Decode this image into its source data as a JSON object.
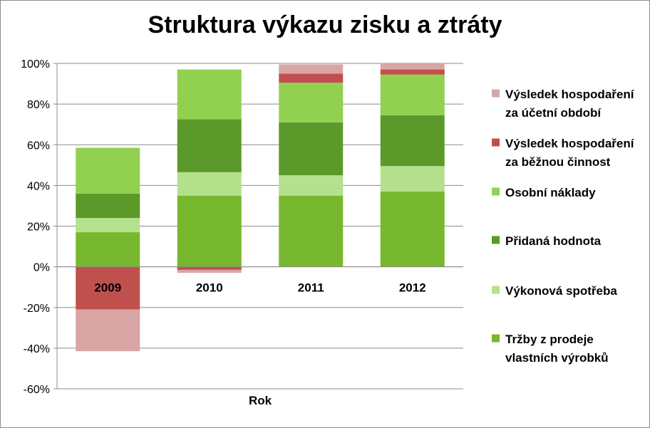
{
  "chart_data": {
    "type": "bar",
    "stacked": true,
    "title": "Struktura výkazu zisku a ztráty",
    "xlabel": "Rok",
    "ylabel": "",
    "ylim": [
      -60,
      100
    ],
    "y_ticks": [
      "100%",
      "80%",
      "60%",
      "40%",
      "20%",
      "0%",
      "-20%",
      "-40%",
      "-60%"
    ],
    "grid": true,
    "legend_position": "right",
    "categories": [
      "2009",
      "2010",
      "2011",
      "2012"
    ],
    "series": [
      {
        "name": "Tržby z prodeje vlastních výrobků",
        "color": "#77b82f",
        "values": [
          17,
          35,
          35,
          37
        ]
      },
      {
        "name": "Výkonová spotřeba",
        "color": "#b5e08c",
        "values": [
          7,
          11.5,
          10,
          12.5
        ]
      },
      {
        "name": "Přidaná hodnota",
        "color": "#5b9a2a",
        "values": [
          12,
          26,
          26,
          25
        ]
      },
      {
        "name": "Osobní náklady",
        "color": "#92d050",
        "values": [
          22.5,
          24.5,
          19.5,
          20
        ]
      },
      {
        "name": "Výsledek hospodaření za běžnou činnost",
        "color": "#c0504d",
        "values": [
          -21,
          -1.5,
          4.5,
          2.5
        ]
      },
      {
        "name": "Výsledek hospodaření za účetní období",
        "color": "#d9a5a5",
        "values": [
          -20.5,
          -1.5,
          4.5,
          3
        ]
      }
    ]
  }
}
